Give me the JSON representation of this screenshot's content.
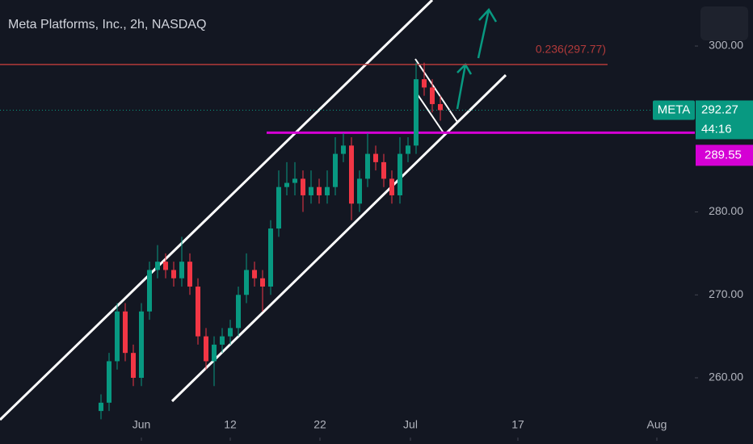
{
  "chart_data": {
    "type": "candlestick",
    "title": "Meta Platforms, Inc., 2h, NASDAQ",
    "up_color": "#089981",
    "down_color": "#f23645",
    "open": [
      256,
      257,
      262,
      268,
      263,
      260,
      268,
      273,
      274,
      273,
      272,
      274,
      271,
      265,
      262,
      264,
      265,
      266,
      270,
      273,
      272,
      271,
      278,
      283,
      283.5,
      284,
      282,
      283,
      282,
      283,
      287,
      288,
      281,
      284,
      287,
      286,
      284,
      282,
      287,
      288,
      296,
      295,
      293
    ],
    "high": [
      258,
      263,
      269,
      269,
      264,
      269,
      274,
      276,
      275,
      274,
      277,
      275,
      272,
      266,
      265,
      266,
      267,
      271,
      275,
      274,
      273,
      279,
      285,
      286,
      286,
      285,
      285,
      284,
      285,
      289,
      289.5,
      289,
      285,
      289.5,
      288,
      287,
      285,
      289,
      289,
      298,
      298,
      296,
      294
    ],
    "low": [
      255,
      256,
      261,
      262,
      259,
      259,
      267,
      272,
      272,
      271,
      271,
      270,
      264,
      261,
      259,
      263,
      264,
      265,
      269,
      271,
      268,
      270,
      277,
      282,
      282,
      280,
      281,
      281,
      281,
      282,
      286,
      279,
      280,
      283,
      285,
      283,
      281,
      281,
      286,
      287,
      294,
      292,
      291
    ],
    "close": [
      257,
      262,
      268,
      263,
      260,
      268,
      273,
      274,
      273,
      272,
      274,
      271,
      265,
      262,
      264,
      265,
      266,
      270,
      273,
      272,
      271,
      278,
      283,
      283.5,
      284,
      282,
      283,
      282,
      283,
      287,
      288,
      281,
      284,
      287,
      286,
      284,
      282,
      287,
      288,
      296,
      295,
      293,
      292.27
    ],
    "xlim": [
      -12.5,
      73.5
    ],
    "xticks": [
      {
        "value": 5,
        "label": "Jun"
      },
      {
        "value": 16,
        "label": "12"
      },
      {
        "value": 27.1,
        "label": "22"
      },
      {
        "value": 38.3,
        "label": "Jul"
      },
      {
        "value": 51.6,
        "label": "17"
      },
      {
        "value": 68.8,
        "label": "Aug"
      }
    ],
    "ylim": [
      252.02,
      305.55
    ],
    "yticks": [
      {
        "value": 260,
        "label": "260.00"
      },
      {
        "value": 270,
        "label": "270.00"
      },
      {
        "value": 280,
        "label": "280.00"
      },
      {
        "value": 300,
        "label": "300.00"
      }
    ],
    "grid": false,
    "fib_level": {
      "label": "0.236(297.77)",
      "value": 297.77,
      "color": "#b23a3a"
    },
    "support_level": {
      "value": 289.55,
      "color": "#d500d5"
    },
    "last_price": {
      "symbol": "META",
      "value": 292.27,
      "countdown": "44:16",
      "color": "#089981"
    }
  }
}
